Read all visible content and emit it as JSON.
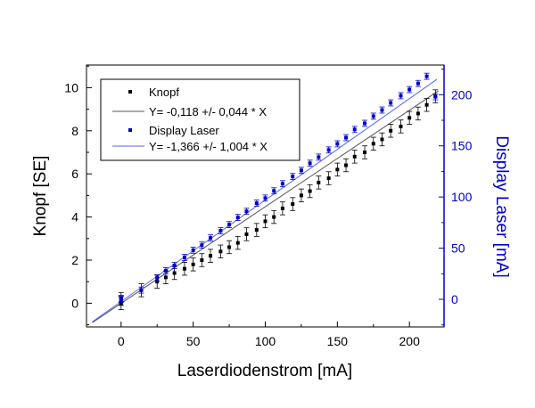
{
  "chart_data": {
    "type": "scatter",
    "x_axis": {
      "label": "Laserdiodenstrom [mA]",
      "range": [
        -24,
        224
      ],
      "ticks": [
        0,
        50,
        100,
        150,
        200
      ],
      "minor_step": 25
    },
    "y_axis_left": {
      "label": "Knopf [SE]",
      "range": [
        -1.1,
        11.05
      ],
      "ticks": [
        0,
        2,
        4,
        6,
        8,
        10
      ],
      "minor_step": 1
    },
    "y_axis_right": {
      "label": "Display Laser [mA]",
      "range": [
        -27,
        229
      ],
      "ticks": [
        0,
        50,
        100,
        150,
        200
      ],
      "minor_step": 25
    },
    "legend_position": "top-left",
    "legend": [
      {
        "key": "knopf_points",
        "label": "Knopf"
      },
      {
        "key": "knopf_fit",
        "label": "Y= -0,118 +/- 0,044 * X"
      },
      {
        "key": "display_points",
        "label": "Display Laser"
      },
      {
        "key": "display_fit",
        "label": "Y= -1,366 +/- 1,004 * X"
      }
    ],
    "colors": {
      "knopf": "#000000",
      "display": "#0000cc",
      "knopf_fit": "#555555",
      "display_fit": "#5566ee",
      "axis_right": "#0000cc"
    },
    "series": [
      {
        "name": "Knopf",
        "axis": "left",
        "points": [
          [
            0,
            0
          ],
          [
            0,
            0.2
          ],
          [
            14,
            0.6
          ],
          [
            25,
            1.0
          ],
          [
            31,
            1.2
          ],
          [
            37,
            1.4
          ],
          [
            44,
            1.6
          ],
          [
            50,
            1.8
          ],
          [
            56,
            2.0
          ],
          [
            62,
            2.2
          ],
          [
            69,
            2.4
          ],
          [
            75,
            2.6
          ],
          [
            81,
            2.8
          ],
          [
            87,
            3.2
          ],
          [
            94,
            3.4
          ],
          [
            100,
            3.8
          ],
          [
            106,
            4.0
          ],
          [
            112,
            4.4
          ],
          [
            119,
            4.6
          ],
          [
            125,
            5.0
          ],
          [
            131,
            5.2
          ],
          [
            137,
            5.6
          ],
          [
            144,
            5.8
          ],
          [
            150,
            6.2
          ],
          [
            156,
            6.4
          ],
          [
            162,
            6.8
          ],
          [
            169,
            7.0
          ],
          [
            175,
            7.4
          ],
          [
            181,
            7.6
          ],
          [
            187,
            8.0
          ],
          [
            194,
            8.2
          ],
          [
            200,
            8.6
          ],
          [
            206,
            8.8
          ],
          [
            212,
            9.2
          ],
          [
            218,
            9.6
          ]
        ],
        "error": 0.3
      },
      {
        "name": "Display Laser",
        "axis": "right",
        "points": [
          [
            0,
            0
          ],
          [
            0,
            1
          ],
          [
            14,
            9
          ],
          [
            25,
            21
          ],
          [
            31,
            28
          ],
          [
            37,
            33
          ],
          [
            44,
            41
          ],
          [
            50,
            48
          ],
          [
            56,
            53
          ],
          [
            62,
            60
          ],
          [
            69,
            67
          ],
          [
            75,
            73
          ],
          [
            81,
            80
          ],
          [
            87,
            86
          ],
          [
            94,
            94
          ],
          [
            100,
            99
          ],
          [
            106,
            106
          ],
          [
            112,
            113
          ],
          [
            119,
            120
          ],
          [
            125,
            126
          ],
          [
            131,
            133
          ],
          [
            137,
            139
          ],
          [
            144,
            146
          ],
          [
            150,
            152
          ],
          [
            156,
            158
          ],
          [
            162,
            166
          ],
          [
            169,
            172
          ],
          [
            175,
            179
          ],
          [
            181,
            185
          ],
          [
            187,
            192
          ],
          [
            194,
            199
          ],
          [
            200,
            205
          ],
          [
            206,
            211
          ],
          [
            212,
            218
          ],
          [
            218,
            198
          ]
        ],
        "error": 3
      }
    ],
    "fits": [
      {
        "name": "Knopf fit",
        "axis": "left",
        "x": [
          -20,
          220
        ],
        "y": [
          -0.9,
          9.85
        ]
      },
      {
        "name": "Display Laser fit",
        "axis": "right",
        "x": [
          -20,
          219
        ],
        "y": [
          -22,
          215
        ]
      }
    ]
  }
}
